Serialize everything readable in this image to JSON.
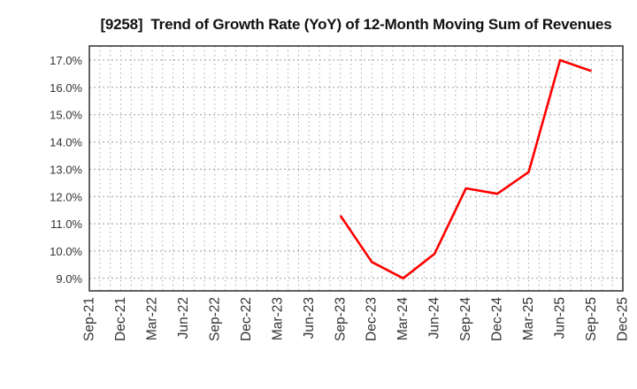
{
  "header": {
    "title": "[9258]  Trend of Growth Rate (YoY) of 12-Month Moving Sum of Revenues"
  },
  "style": {
    "background_color": "#ffffff",
    "line_color": "#ff0000",
    "grid_color": "#a6a6a6",
    "border_color": "#3b3b3b",
    "tick_label_color": "#333333",
    "title_color": "#111111"
  },
  "chart_data": {
    "type": "line",
    "title": "[9258]  Trend of Growth Rate (YoY) of 12-Month Moving Sum of Revenues",
    "xlabel": "",
    "ylabel": "",
    "legend": "none",
    "grid": {
      "horizontal": "dotted at every 1%",
      "vertical": "dotted monthly",
      "minor_per_category": 3
    },
    "categories": [
      "Sep-21",
      "Dec-21",
      "Mar-22",
      "Jun-22",
      "Sep-22",
      "Dec-22",
      "Mar-23",
      "Jun-23",
      "Sep-23",
      "Dec-23",
      "Mar-24",
      "Jun-24",
      "Sep-24",
      "Dec-24",
      "Mar-25",
      "Jun-25",
      "Sep-25",
      "Dec-25"
    ],
    "y_ticks": [
      9,
      10,
      11,
      12,
      13,
      14,
      15,
      16,
      17
    ],
    "y_tick_labels": [
      "9.0%",
      "10.0%",
      "11.0%",
      "12.0%",
      "13.0%",
      "14.0%",
      "15.0%",
      "16.0%",
      "17.0%"
    ],
    "ylim": [
      8.54,
      17.52
    ],
    "series": [
      {
        "name": "Growth Rate (YoY) of 12-Month Moving Sum of Revenues",
        "color": "#ff0000",
        "values": [
          null,
          null,
          null,
          null,
          null,
          null,
          null,
          null,
          11.3,
          9.6,
          9.0,
          9.9,
          12.3,
          12.1,
          12.9,
          17.0,
          16.6,
          null
        ]
      }
    ]
  }
}
